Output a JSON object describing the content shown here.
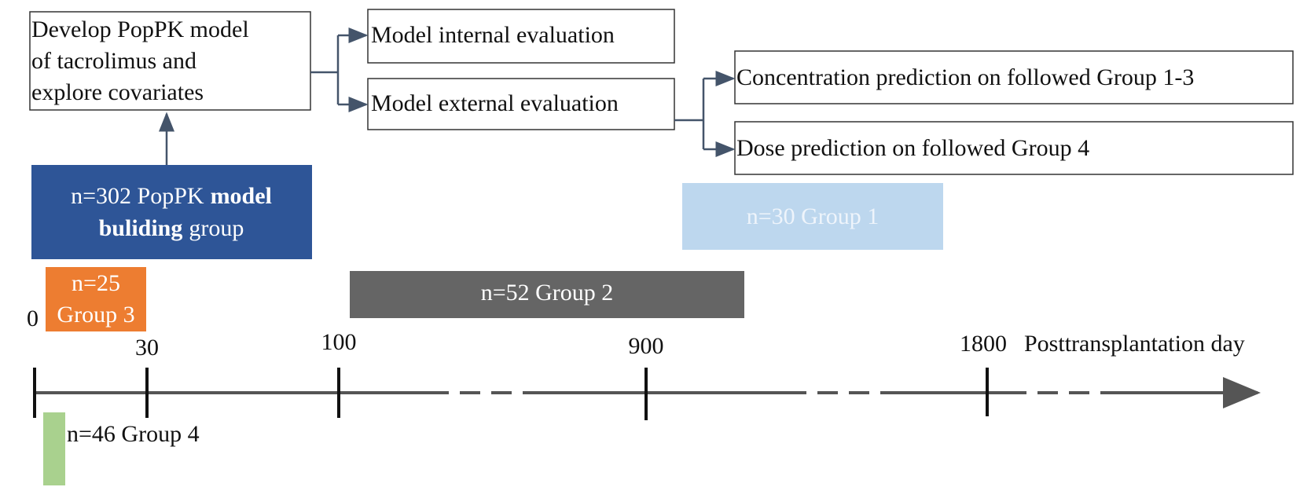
{
  "flow": {
    "develop": {
      "lines": [
        "Develop  PopPK model",
        "of tacrolimus and",
        "explore covariates"
      ]
    },
    "internal": "Model internal evaluation",
    "external": "Model external evaluation",
    "concentration": "Concentration prediction on followed Group 1-3",
    "dose": "Dose prediction on followed Group 4"
  },
  "groups": {
    "building": {
      "line1": "n=302 PopPK",
      "bold1": "model",
      "bold2": "buliding",
      "line2": "group"
    },
    "group1": "n=30 Group 1",
    "group2": "n=52 Group 2",
    "group3": [
      "n=25",
      "Group 3"
    ],
    "group4": "n=46 Group 4"
  },
  "timeline": {
    "ticks": [
      "0",
      "30",
      "100",
      "900",
      "1800"
    ],
    "label": "Posttransplantation day"
  }
}
